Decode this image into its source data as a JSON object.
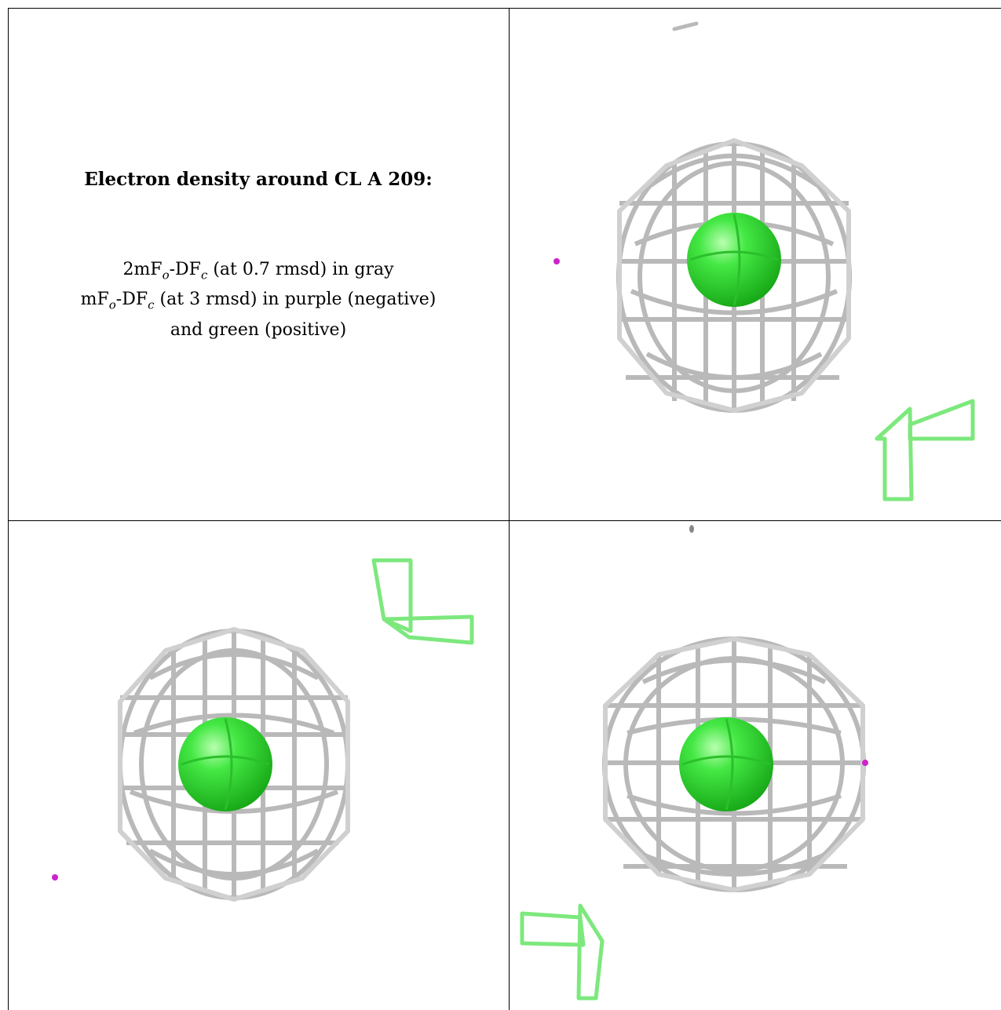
{
  "caption": {
    "title": "Electron density around CL A 209:",
    "line1": {
      "prefix": "2mF",
      "sub1": "o",
      "mid": "-DF",
      "sub2": "c",
      "suffix": " (at 0.7 rmsd) in gray"
    },
    "line2": {
      "prefix": "mF",
      "sub1": "o",
      "mid": "-DF",
      "sub2": "c",
      "suffix": " (at 3 rmsd) in purple (negative)"
    },
    "line3": "and green (positive)"
  },
  "colors": {
    "mesh_gray": "#b9b9b9",
    "mesh_dark": "#7a7a7a",
    "atom_green": "#33dd33",
    "positive_green": "#7de87d",
    "negative_purple": "#cc22cc",
    "border": "#000000"
  },
  "views": [
    {
      "name": "view-top-right"
    },
    {
      "name": "view-bottom-left"
    },
    {
      "name": "view-bottom-right"
    }
  ]
}
